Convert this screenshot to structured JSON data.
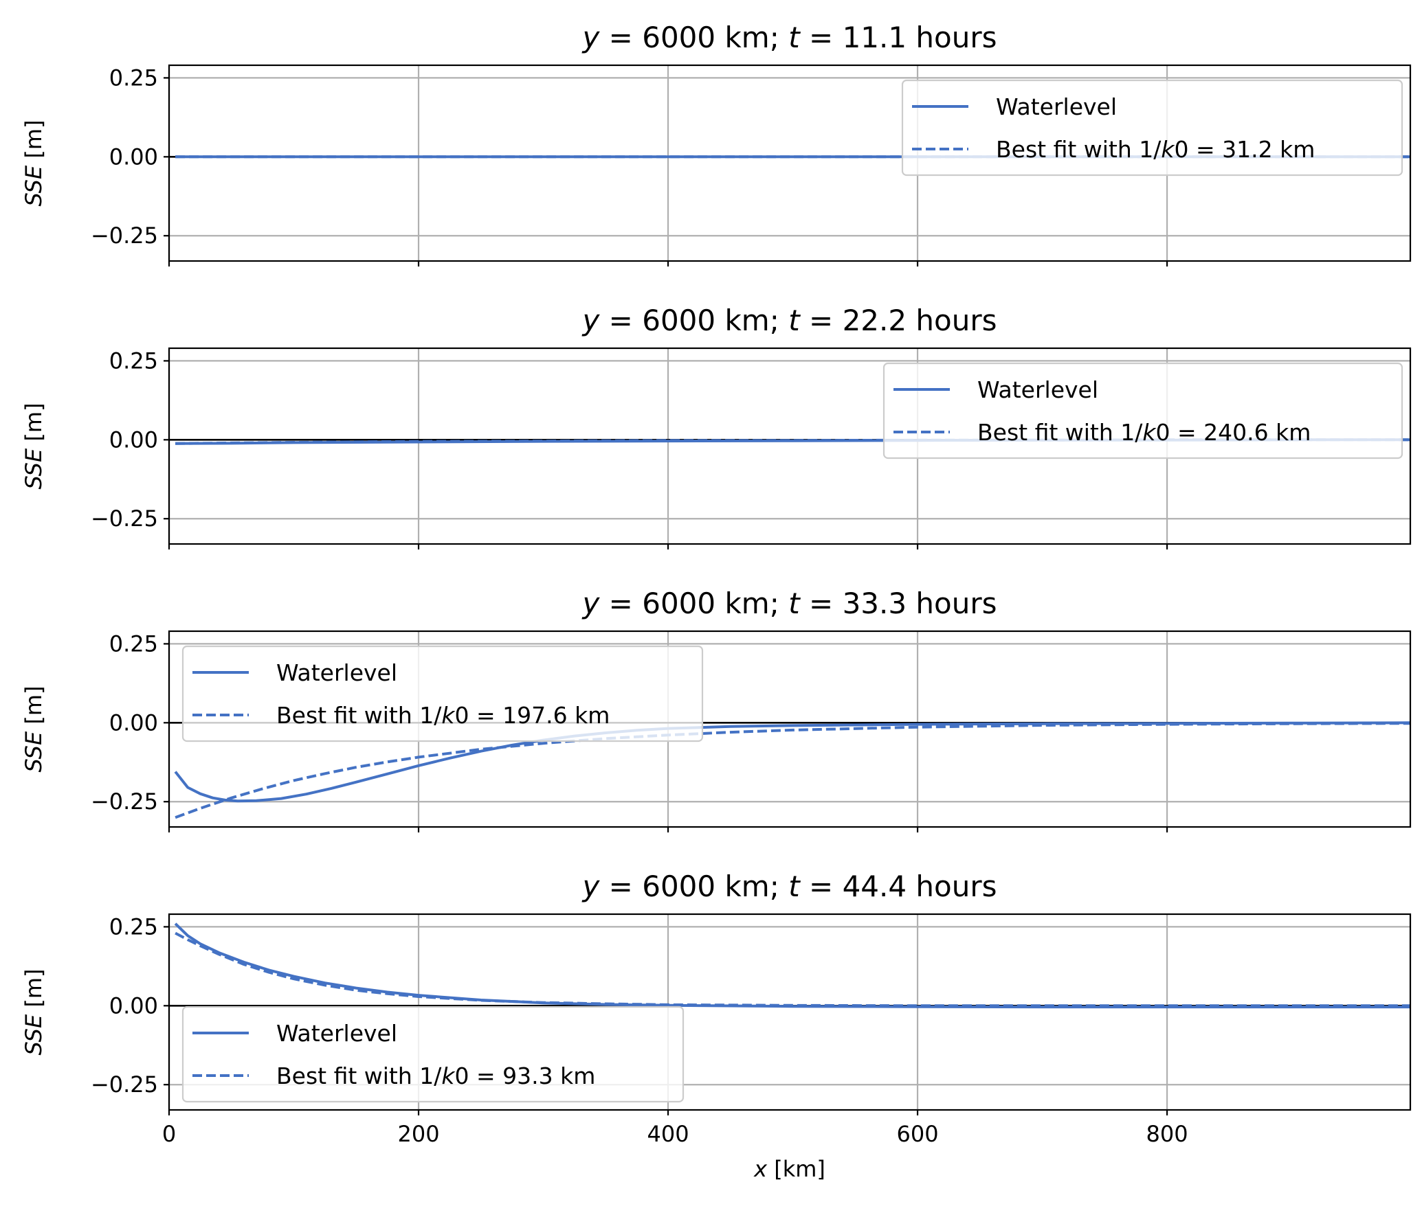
{
  "chart_data": [
    {
      "type": "line",
      "title_y": "6000",
      "title_t": "11.1",
      "ylabel": "SSE [m]",
      "xlabel": "",
      "xlim": [
        0,
        995
      ],
      "ylim": [
        -0.33,
        0.29
      ],
      "yticks": [
        "0.25",
        "0.00",
        "−0.25"
      ],
      "ytick_values": [
        0.25,
        0.0,
        -0.25
      ],
      "xticks": [],
      "xtick_values": [
        0,
        200,
        400,
        600,
        800
      ],
      "legend_position": "upper right",
      "fit_k0": "31.2",
      "series": [
        {
          "name": "Waterlevel",
          "style": "solid",
          "x": [
            5,
            50,
            100,
            200,
            300,
            400,
            500,
            600,
            700,
            800,
            900,
            995
          ],
          "y": [
            0,
            0,
            0,
            0,
            0,
            0,
            0,
            0,
            0,
            0,
            0,
            0
          ]
        },
        {
          "name": "Best fit with 1/k0 = 31.2 km",
          "style": "dashed",
          "x": [
            5,
            50,
            100,
            200,
            300,
            400,
            500,
            600,
            700,
            800,
            900,
            995
          ],
          "y": [
            0,
            0,
            0,
            0,
            0,
            0,
            0,
            0,
            0,
            0,
            0,
            0
          ]
        }
      ]
    },
    {
      "type": "line",
      "title_y": "6000",
      "title_t": "22.2",
      "ylabel": "SSE [m]",
      "xlabel": "",
      "xlim": [
        0,
        995
      ],
      "ylim": [
        -0.33,
        0.29
      ],
      "yticks": [
        "0.25",
        "0.00",
        "−0.25"
      ],
      "ytick_values": [
        0.25,
        0.0,
        -0.25
      ],
      "xticks": [],
      "xtick_values": [
        0,
        200,
        400,
        600,
        800
      ],
      "legend_position": "upper right",
      "fit_k0": "240.6",
      "series": [
        {
          "name": "Waterlevel",
          "style": "solid",
          "x": [
            5,
            50,
            100,
            200,
            300,
            400,
            500,
            600,
            700,
            800,
            900,
            995
          ],
          "y": [
            -0.012,
            -0.011,
            -0.009,
            -0.007,
            -0.005,
            -0.004,
            -0.003,
            -0.002,
            -0.001,
            -0.001,
            0,
            0
          ]
        },
        {
          "name": "Best fit with 1/k0 = 240.6 km",
          "style": "dashed",
          "x": [
            5,
            50,
            100,
            200,
            300,
            400,
            500,
            600,
            700,
            800,
            900,
            995
          ],
          "y": [
            -0.012,
            -0.01,
            -0.008,
            -0.005,
            -0.004,
            -0.002,
            -0.002,
            -0.001,
            -0.001,
            0,
            0,
            0
          ]
        }
      ]
    },
    {
      "type": "line",
      "title_y": "6000",
      "title_t": "33.3",
      "ylabel": "SSE [m]",
      "xlabel": "",
      "xlim": [
        0,
        995
      ],
      "ylim": [
        -0.33,
        0.29
      ],
      "yticks": [
        "0.25",
        "0.00",
        "−0.25"
      ],
      "ytick_values": [
        0.25,
        0.0,
        -0.25
      ],
      "xticks": [],
      "xtick_values": [
        0,
        200,
        400,
        600,
        800
      ],
      "legend_position": "upper left",
      "fit_k0": "197.6",
      "series": [
        {
          "name": "Waterlevel",
          "style": "solid",
          "x": [
            5,
            15,
            25,
            35,
            45,
            55,
            70,
            90,
            110,
            130,
            150,
            175,
            200,
            225,
            250,
            275,
            300,
            325,
            350,
            375,
            400,
            450,
            500,
            550,
            600,
            700,
            800,
            900,
            995
          ],
          "y": [
            -0.155,
            -0.205,
            -0.225,
            -0.238,
            -0.245,
            -0.248,
            -0.247,
            -0.24,
            -0.226,
            -0.208,
            -0.188,
            -0.162,
            -0.136,
            -0.112,
            -0.09,
            -0.071,
            -0.055,
            -0.042,
            -0.032,
            -0.024,
            -0.018,
            -0.012,
            -0.009,
            -0.007,
            -0.005,
            -0.003,
            -0.002,
            -0.001,
            0
          ]
        },
        {
          "name": "Best fit with 1/k0 = 197.6 km",
          "style": "dashed",
          "x": [
            5,
            25,
            50,
            75,
            100,
            125,
            150,
            175,
            200,
            250,
            300,
            350,
            400,
            450,
            500,
            600,
            700,
            800,
            900,
            995
          ],
          "y": [
            -0.3,
            -0.271,
            -0.238,
            -0.209,
            -0.183,
            -0.161,
            -0.141,
            -0.124,
            -0.109,
            -0.084,
            -0.065,
            -0.05,
            -0.039,
            -0.03,
            -0.023,
            -0.014,
            -0.008,
            -0.005,
            -0.003,
            -0.002
          ]
        }
      ]
    },
    {
      "type": "line",
      "title_y": "6000",
      "title_t": "44.4",
      "ylabel": "SSE [m]",
      "xlabel": "x [km]",
      "xlim": [
        0,
        995
      ],
      "ylim": [
        -0.33,
        0.29
      ],
      "yticks": [
        "0.25",
        "0.00",
        "−0.25"
      ],
      "ytick_values": [
        0.25,
        0.0,
        -0.25
      ],
      "xticks": [
        "0",
        "200",
        "400",
        "600",
        "800"
      ],
      "xtick_values": [
        0,
        200,
        400,
        600,
        800
      ],
      "legend_position": "lower left",
      "fit_k0": "93.3",
      "series": [
        {
          "name": "Waterlevel",
          "style": "solid",
          "x": [
            5,
            15,
            25,
            40,
            60,
            80,
            100,
            125,
            150,
            175,
            200,
            250,
            300,
            350,
            400,
            500,
            600,
            700,
            800,
            900,
            995
          ],
          "y": [
            0.26,
            0.222,
            0.196,
            0.168,
            0.138,
            0.113,
            0.093,
            0.072,
            0.056,
            0.043,
            0.033,
            0.018,
            0.009,
            0.004,
            0.001,
            -0.002,
            -0.003,
            -0.004,
            -0.004,
            -0.004,
            -0.004
          ]
        },
        {
          "name": "Best fit with 1/k0 = 93.3 km",
          "style": "dashed",
          "x": [
            5,
            15,
            25,
            40,
            60,
            80,
            100,
            125,
            150,
            175,
            200,
            250,
            300,
            350,
            400,
            500,
            600,
            700,
            800,
            900,
            995
          ],
          "y": [
            0.23,
            0.209,
            0.19,
            0.163,
            0.131,
            0.106,
            0.085,
            0.065,
            0.049,
            0.038,
            0.029,
            0.017,
            0.01,
            0.006,
            0.003,
            0.001,
            0,
            0,
            0,
            0,
            0
          ]
        }
      ]
    }
  ],
  "colors": {
    "series": "#4472c4",
    "zero_line": "#000000",
    "grid": "#b0b0b0"
  }
}
